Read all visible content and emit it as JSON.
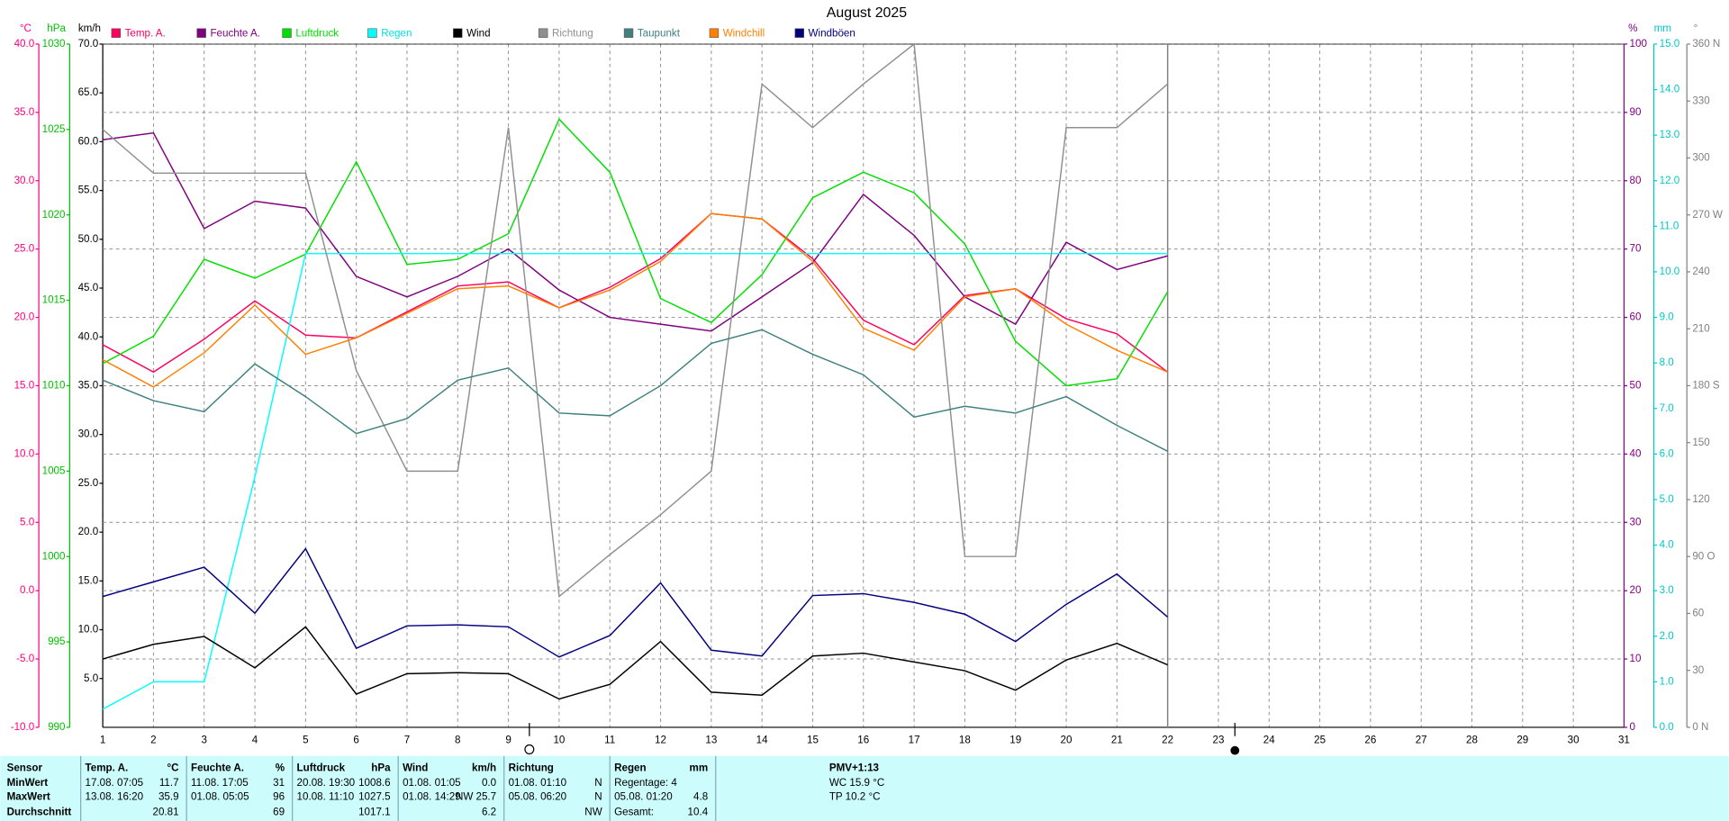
{
  "chart_data": {
    "type": "line",
    "title": "August 2025",
    "xlim": [
      1,
      31
    ],
    "xticks": [
      1,
      2,
      3,
      4,
      5,
      6,
      7,
      8,
      9,
      10,
      11,
      12,
      13,
      14,
      15,
      16,
      17,
      18,
      19,
      20,
      21,
      22,
      23,
      24,
      25,
      26,
      27,
      28,
      29,
      30,
      31
    ],
    "x": [
      1,
      2,
      3,
      4,
      5,
      6,
      7,
      8,
      9,
      10,
      11,
      12,
      13,
      14,
      15,
      16,
      17,
      18,
      19,
      20,
      21,
      22
    ],
    "axes": [
      {
        "label": "°C",
        "side": "left",
        "color": "#ff0080",
        "lim": [
          -10,
          40
        ],
        "ticks": [
          {
            "value": -10,
            "label": "-10.0"
          },
          {
            "value": -5,
            "label": "-5.0"
          },
          {
            "value": 0,
            "label": "0.0"
          },
          {
            "value": 5,
            "label": "5.0"
          },
          {
            "value": 10,
            "label": "10.0"
          },
          {
            "value": 15,
            "label": "15.0"
          },
          {
            "value": 20,
            "label": "20.0"
          },
          {
            "value": 25,
            "label": "25.0"
          },
          {
            "value": 30,
            "label": "30.0"
          },
          {
            "value": 35,
            "label": "35.0"
          },
          {
            "value": 40,
            "label": "40.0"
          }
        ]
      },
      {
        "label": "hPa",
        "side": "left",
        "color": "#00c000",
        "lim": [
          990,
          1030
        ],
        "ticks": [
          990,
          995,
          1000,
          1005,
          1010,
          1015,
          1020,
          1025,
          1030
        ]
      },
      {
        "label": "km/h",
        "side": "left",
        "color": "#000000",
        "lim": [
          0,
          70
        ],
        "ticks": [
          {
            "value": 5,
            "label": "5.0"
          },
          {
            "value": 10,
            "label": "10.0"
          },
          {
            "value": 15,
            "label": "15.0"
          },
          {
            "value": 20,
            "label": "20.0"
          },
          {
            "value": 25,
            "label": "25.0"
          },
          {
            "value": 30,
            "label": "30.0"
          },
          {
            "value": 35,
            "label": "35.0"
          },
          {
            "value": 40,
            "label": "40.0"
          },
          {
            "value": 45,
            "label": "45.0"
          },
          {
            "value": 50,
            "label": "50.0"
          },
          {
            "value": 55,
            "label": "55.0"
          },
          {
            "value": 60,
            "label": "60.0"
          },
          {
            "value": 65,
            "label": "65.0"
          },
          {
            "value": 70,
            "label": "70.0"
          }
        ]
      },
      {
        "label": "%",
        "side": "right",
        "color": "#800080",
        "lim": [
          0,
          100
        ],
        "grid": true,
        "ticks": [
          0,
          10,
          20,
          30,
          40,
          50,
          60,
          70,
          80,
          90,
          100
        ]
      },
      {
        "label": "mm",
        "side": "right",
        "color": "#00c8c8",
        "lim": [
          0,
          15
        ],
        "ticks": [
          {
            "value": 0,
            "label": "0.0"
          },
          {
            "value": 1,
            "label": "1.0"
          },
          {
            "value": 2,
            "label": "2.0"
          },
          {
            "value": 3,
            "label": "3.0"
          },
          {
            "value": 4,
            "label": "4.0"
          },
          {
            "value": 5,
            "label": "5.0"
          },
          {
            "value": 6,
            "label": "6.0"
          },
          {
            "value": 7,
            "label": "7.0"
          },
          {
            "value": 8,
            "label": "8.0"
          },
          {
            "value": 9,
            "label": "9.0"
          },
          {
            "value": 10,
            "label": "10.0"
          },
          {
            "value": 11,
            "label": "11.0"
          },
          {
            "value": 12,
            "label": "12.0"
          },
          {
            "value": 13,
            "label": "13.0"
          },
          {
            "value": 14,
            "label": "14.0"
          },
          {
            "value": 15,
            "label": "15.0"
          }
        ]
      },
      {
        "label": "°",
        "side": "right",
        "color": "#808080",
        "lim": [
          0,
          360
        ],
        "ticks": [
          {
            "value": 0,
            "label": "0 N"
          },
          30,
          60,
          {
            "value": 90,
            "label": "90 O"
          },
          120,
          150,
          {
            "value": 180,
            "label": "180 S"
          },
          210,
          240,
          {
            "value": 270,
            "label": "270 W"
          },
          300,
          330,
          {
            "value": 360,
            "label": "360 N"
          }
        ]
      }
    ],
    "series": [
      {
        "name": "Temp. A.",
        "color": "#ff0060",
        "axis": 0,
        "values": [
          18.0,
          16.0,
          18.4,
          21.2,
          18.7,
          18.5,
          20.4,
          22.3,
          22.6,
          20.7,
          22.2,
          24.3,
          27.6,
          27.2,
          24.3,
          19.8,
          18.0,
          21.6,
          22.1,
          19.9,
          18.8,
          16.0
        ]
      },
      {
        "name": "Feuchte A.",
        "color": "#800080",
        "axis": 3,
        "values": [
          86,
          87,
          73,
          77,
          76,
          66,
          63,
          66,
          70,
          64,
          60,
          59,
          58,
          63,
          68,
          78,
          72,
          63,
          59,
          71,
          67,
          69
        ]
      },
      {
        "name": "Luftdruck",
        "color": "#00e000",
        "axis": 1,
        "values": [
          1011.3,
          1012.9,
          1017.4,
          1016.3,
          1017.7,
          1023.1,
          1017.1,
          1017.4,
          1018.9,
          1025.6,
          1022.5,
          1015.1,
          1013.7,
          1016.5,
          1021.0,
          1022.5,
          1021.3,
          1018.3,
          1012.6,
          1010.0,
          1010.4,
          1015.5
        ]
      },
      {
        "name": "Regen",
        "color": "#00ffff",
        "axis": 4,
        "values": [
          0.4,
          1.0,
          1.0,
          5.5,
          10.4,
          10.4,
          10.4,
          10.4,
          10.4,
          10.4,
          10.4,
          10.4,
          10.4,
          10.4,
          10.4,
          10.4,
          10.4,
          10.4,
          10.4,
          10.4,
          10.4,
          10.4
        ]
      },
      {
        "name": "Wind",
        "color": "#000000",
        "axis": 2,
        "values": [
          7.0,
          8.5,
          9.3,
          6.1,
          10.3,
          3.4,
          5.5,
          5.6,
          5.5,
          2.9,
          4.4,
          8.8,
          3.6,
          3.3,
          7.3,
          7.6,
          6.7,
          5.8,
          3.8,
          6.9,
          8.6,
          6.4
        ]
      },
      {
        "name": "Richtung",
        "color": "#909090",
        "axis": 5,
        "values": [
          315,
          292,
          292,
          292,
          292,
          188,
          135,
          135,
          316,
          69,
          91,
          112,
          135,
          339,
          316,
          339,
          360,
          90,
          90,
          316,
          316,
          339
        ]
      },
      {
        "name": "Taupunkt",
        "color": "#408080",
        "axis": 0,
        "values": [
          15.4,
          13.9,
          13.1,
          16.6,
          14.2,
          11.5,
          12.6,
          15.4,
          16.3,
          13.0,
          12.8,
          15.0,
          18.1,
          19.1,
          17.3,
          15.8,
          12.7,
          13.5,
          13.0,
          14.2,
          12.1,
          10.2
        ]
      },
      {
        "name": "Windchill",
        "color": "#ff8000",
        "axis": 0,
        "values": [
          16.9,
          14.9,
          17.4,
          20.9,
          17.3,
          18.5,
          20.3,
          22.1,
          22.3,
          20.7,
          22.0,
          24.1,
          27.6,
          27.2,
          24.1,
          19.2,
          17.6,
          21.5,
          22.1,
          19.5,
          17.6,
          16.0
        ]
      },
      {
        "name": "Windböen",
        "color": "#000080",
        "axis": 2,
        "values": [
          13.4,
          14.9,
          16.4,
          11.7,
          18.3,
          8.1,
          10.4,
          10.5,
          10.3,
          7.2,
          9.4,
          14.8,
          7.9,
          7.3,
          13.5,
          13.7,
          12.8,
          11.6,
          8.8,
          12.6,
          15.7,
          11.3
        ]
      }
    ]
  },
  "stats": {
    "row_labels": [
      "Sensor",
      "MinWert",
      "MaxWert",
      "Durchschnitt"
    ],
    "columns": [
      {
        "name": "Temp. A.",
        "unit": "°C",
        "rows": [
          {
            "time": "17.08. 07:05",
            "value": "11.7"
          },
          {
            "time": "13.08. 16:20",
            "value": "35.9"
          },
          {
            "value": "20.81"
          }
        ]
      },
      {
        "name": "Feuchte A.",
        "unit": "%",
        "rows": [
          {
            "time": "11.08. 17:05",
            "value": "31"
          },
          {
            "time": "01.08. 05:05",
            "value": "96"
          },
          {
            "value": "69"
          }
        ]
      },
      {
        "name": "Luftdruck",
        "unit": "hPa",
        "rows": [
          {
            "time": "20.08. 19:30",
            "value": "1008.6"
          },
          {
            "time": "10.08. 11:10",
            "value": "1027.5"
          },
          {
            "value": "1017.1"
          }
        ]
      },
      {
        "name": "Wind",
        "unit": "km/h",
        "rows": [
          {
            "time": "01.08. 01:05",
            "value": "0.0"
          },
          {
            "time": "01.08. 14:29",
            "value": "NW 25.7"
          },
          {
            "value": "6.2"
          }
        ]
      },
      {
        "name": "Richtung",
        "rows": [
          {
            "time": "01.08. 01:10",
            "value": "N"
          },
          {
            "time": "05.08. 06:20",
            "value": "N"
          },
          {
            "value": "NW"
          }
        ]
      },
      {
        "name": "Regen",
        "unit": "mm",
        "rows": [
          {
            "time": "Regentage: 4"
          },
          {
            "time": "05.08. 01:20",
            "value": "4.8"
          },
          {
            "time": "Gesamt:",
            "value": "10.4"
          }
        ]
      }
    ],
    "extra": [
      "PMV+1:13",
      "WC 15.9 °C",
      "TP 10.2 °C"
    ]
  }
}
